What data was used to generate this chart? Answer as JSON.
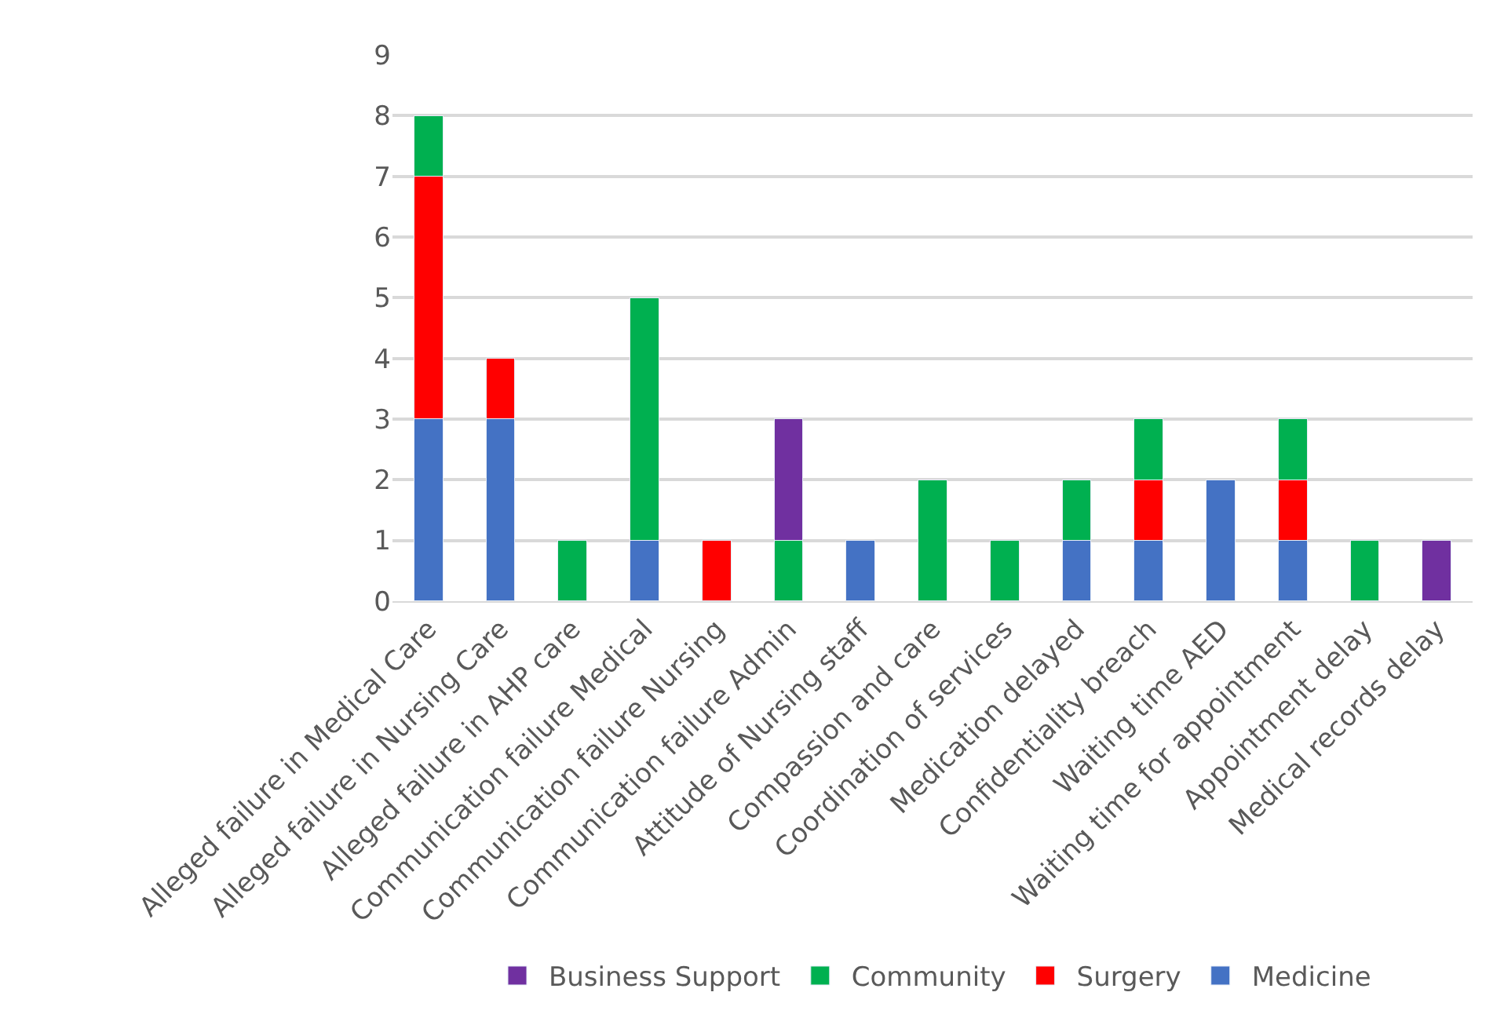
{
  "chart_data": {
    "type": "bar",
    "stacked": true,
    "categories": [
      "Alleged failure in Medical Care",
      "Alleged failure in Nursing Care",
      "Alleged failure in AHP care",
      "Communication failure Medical",
      "Communication failure Nursing",
      "Communication failure Admin",
      "Attitude of Nursing staff",
      "Compassion and care",
      "Coordination of services",
      "Medication delayed",
      "Confidentiality breach",
      "Waiting time AED",
      "Waiting time for appointment",
      "Appointment delay",
      "Medical records delay"
    ],
    "series": [
      {
        "name": "Medicine",
        "color": "#4472c4",
        "values": [
          3,
          3,
          null,
          1,
          null,
          null,
          1,
          null,
          null,
          1,
          1,
          2,
          1,
          null,
          null
        ]
      },
      {
        "name": "Surgery",
        "color": "#ff0000",
        "values": [
          4,
          1,
          null,
          null,
          1,
          null,
          null,
          null,
          null,
          null,
          1,
          null,
          1,
          null,
          null
        ]
      },
      {
        "name": "Community",
        "color": "#00b050",
        "values": [
          1,
          null,
          1,
          4,
          null,
          1,
          null,
          2,
          1,
          1,
          1,
          null,
          1,
          1,
          null
        ]
      },
      {
        "name": "Business Support",
        "color": "#7030a0",
        "values": [
          null,
          null,
          null,
          null,
          null,
          2,
          null,
          null,
          null,
          null,
          null,
          null,
          null,
          null,
          1
        ]
      }
    ],
    "ylim": [
      0,
      9
    ],
    "yticks": [
      0,
      1,
      2,
      3,
      4,
      5,
      6,
      7,
      8,
      9
    ],
    "grid": "y",
    "legend": "bottom"
  }
}
